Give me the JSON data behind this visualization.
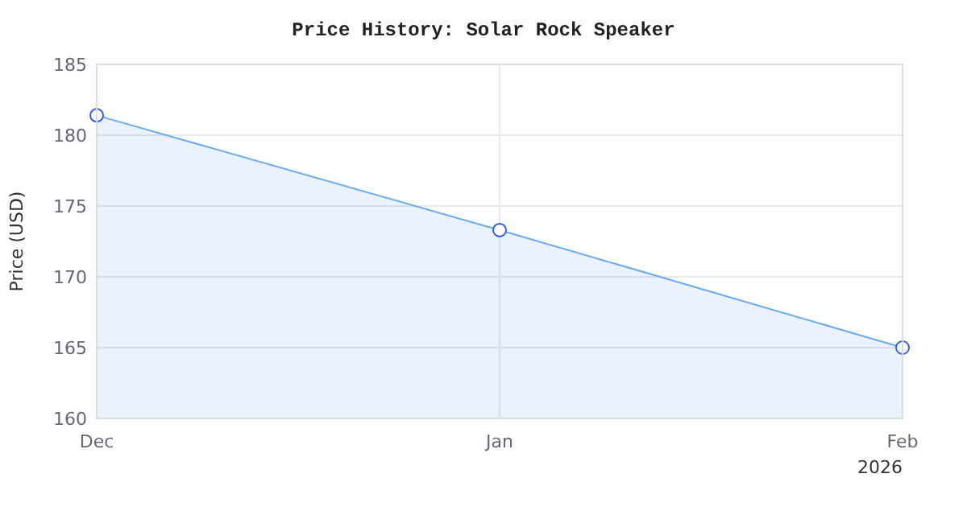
{
  "chart_data": {
    "type": "area",
    "title": "Price History: Solar Rock Speaker",
    "ylabel": "Price (USD)",
    "x": [
      "2025-12",
      "2026-01",
      "2026-02"
    ],
    "series": [
      {
        "color": "#6aaaf0",
        "values": [
          181.4,
          173.3,
          165.0
        ]
      }
    ],
    "xlim": [
      "2025-12",
      "2026-02"
    ],
    "xticks": [
      {
        "value": "2025-12",
        "label": "Dec"
      },
      {
        "value": "2026-01",
        "label": "Jan"
      },
      {
        "value": "2026-02",
        "label": "Feb\n2026"
      }
    ],
    "ylim": [
      160,
      185
    ],
    "yticks": [
      160,
      165,
      170,
      175,
      180,
      185
    ],
    "grid": true,
    "marker": "circle",
    "line_style": "solid"
  }
}
